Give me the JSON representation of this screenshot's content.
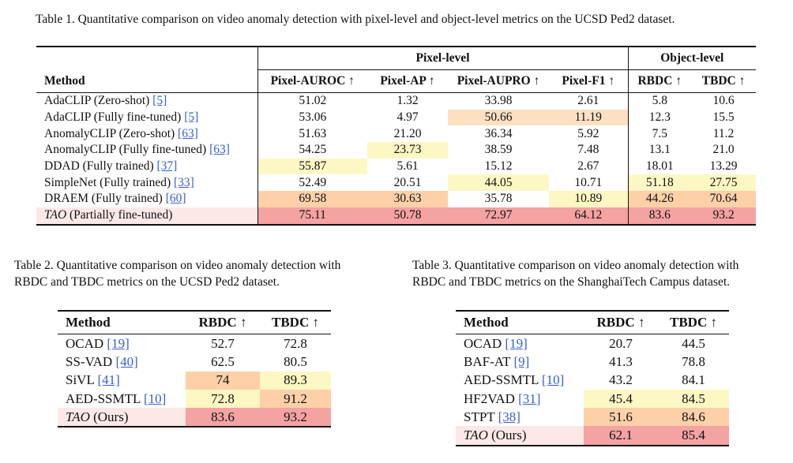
{
  "table1": {
    "caption_label": "Table 1.",
    "caption_text": "Quantitative comparison on video anomaly detection with pixel-level and object-level metrics on the UCSD Ped2 dataset.",
    "group_pixel": "Pixel-level",
    "group_object": "Object-level",
    "headers": [
      "Method",
      "Pixel-AUROC ↑",
      "Pixel-AP ↑",
      "Pixel-AUPRO ↑",
      "Pixel-F1 ↑",
      "RBDC ↑",
      "TBDC ↑"
    ],
    "rows": [
      {
        "method": "AdaCLIP (Zero-shot) ",
        "ref": "[5]",
        "italic": false,
        "cells": [
          "51.02",
          "1.32",
          "33.98",
          "2.61",
          "5.8",
          "10.6"
        ]
      },
      {
        "method": "AdaCLIP (Fully fine-tuned) ",
        "ref": "[5]",
        "italic": false,
        "cells": [
          "53.06",
          "4.97",
          "50.66",
          "11.19",
          "12.3",
          "15.5"
        ]
      },
      {
        "method": "AnomalyCLIP (Zero-shot) ",
        "ref": "[63]",
        "italic": false,
        "cells": [
          "51.63",
          "21.20",
          "36.34",
          "5.92",
          "7.5",
          "11.2"
        ]
      },
      {
        "method": "AnomalyCLIP (Fully fine-tuned) ",
        "ref": "[63]",
        "italic": false,
        "cells": [
          "54.25",
          "23.73",
          "38.59",
          "7.48",
          "13.1",
          "21.0"
        ]
      },
      {
        "method": "DDAD (Fully trained) ",
        "ref": "[37]",
        "italic": false,
        "cells": [
          "55.87",
          "5.61",
          "15.12",
          "2.67",
          "18.01",
          "13.29"
        ]
      },
      {
        "method": "SimpleNet (Fully trained) ",
        "ref": "[33]",
        "italic": false,
        "cells": [
          "52.49",
          "20.51",
          "44.05",
          "10.71",
          "51.18",
          "27.75"
        ]
      },
      {
        "method": "DRAEM (Fully trained) ",
        "ref": "[60]",
        "italic": false,
        "cells": [
          "69.58",
          "30.63",
          "35.78",
          "10.89",
          "44.26",
          "70.64"
        ]
      },
      {
        "method_italic": "TAO",
        "method": " (Partially fine-tuned)",
        "ref": "",
        "italic": true,
        "cells": [
          "75.11",
          "50.78",
          "72.97",
          "64.12",
          "83.6",
          "93.2"
        ]
      }
    ],
    "colors": [
      [
        null,
        null,
        null,
        null,
        null,
        null
      ],
      [
        null,
        null,
        "#fde0c1",
        "#fde0c1",
        null,
        null
      ],
      [
        null,
        null,
        null,
        null,
        null,
        null
      ],
      [
        null,
        "#fdf7c3",
        null,
        null,
        null,
        null
      ],
      [
        "#fdf7c3",
        null,
        null,
        null,
        null,
        null
      ],
      [
        null,
        null,
        "#fdf7c3",
        null,
        "#fdf7c3",
        "#fdf7c3"
      ],
      [
        "#fdd0a8",
        "#fdd0a8",
        null,
        "#fdf7c3",
        "#fdd0a8",
        "#fdd0a8"
      ],
      [
        "#f4a2a2",
        "#f4a2a2",
        "#f4a2a2",
        "#f4a2a2",
        "#f4a2a2",
        "#f4a2a2"
      ]
    ],
    "method_colors": [
      null,
      null,
      null,
      null,
      null,
      null,
      null,
      "#fde8e8"
    ]
  },
  "table2": {
    "caption_label": "Table 2.",
    "caption_line1": "Quantitative comparison on video anomaly detection with",
    "caption_line2": "RBDC and TBDC metrics on the UCSD Ped2 dataset.",
    "headers": [
      "Method",
      "RBDC ↑",
      "TBDC ↑"
    ],
    "rows": [
      {
        "method": "OCAD ",
        "ref": "[19]",
        "italic": false,
        "cells": [
          "52.7",
          "72.8"
        ]
      },
      {
        "method": "SS-VAD ",
        "ref": "[40]",
        "italic": false,
        "cells": [
          "62.5",
          "80.5"
        ]
      },
      {
        "method": "SiVL ",
        "ref": "[41]",
        "italic": false,
        "cells": [
          "74",
          "89.3"
        ]
      },
      {
        "method": "AED-SSMTL ",
        "ref": "[10]",
        "italic": false,
        "cells": [
          "72.8",
          "91.2"
        ]
      },
      {
        "method_italic": "TAO",
        "method": " (Ours)",
        "ref": "",
        "italic": true,
        "cells": [
          "83.6",
          "93.2"
        ]
      }
    ],
    "colors": [
      [
        null,
        null
      ],
      [
        null,
        null
      ],
      [
        "#fdd0a8",
        "#fdf7c3"
      ],
      [
        "#fdf7c3",
        "#fdd0a8"
      ],
      [
        "#f4a2a2",
        "#f4a2a2"
      ]
    ],
    "method_colors": [
      null,
      null,
      null,
      null,
      "#fde8e8"
    ]
  },
  "table3": {
    "caption_label": "Table 3.",
    "caption_line1": "Quantitative comparison on video anomaly detection with",
    "caption_line2": "RBDC and TBDC metrics on the ShanghaiTech Campus dataset.",
    "headers": [
      "Method",
      "RBDC ↑",
      "TBDC ↑"
    ],
    "rows": [
      {
        "method": "OCAD ",
        "ref": "[19]",
        "italic": false,
        "cells": [
          "20.7",
          "44.5"
        ]
      },
      {
        "method": "BAF-AT ",
        "ref": "[9]",
        "italic": false,
        "cells": [
          "41.3",
          "78.8"
        ]
      },
      {
        "method": "AED-SSMTL ",
        "ref": "[10]",
        "italic": false,
        "cells": [
          "43.2",
          "84.1"
        ]
      },
      {
        "method": "HF2VAD ",
        "ref": "[31]",
        "italic": false,
        "cells": [
          "45.4",
          "84.5"
        ]
      },
      {
        "method": "STPT ",
        "ref": "[38]",
        "italic": false,
        "cells": [
          "51.6",
          "84.6"
        ]
      },
      {
        "method_italic": "TAO",
        "method": " (Ours)",
        "ref": "",
        "italic": true,
        "cells": [
          "62.1",
          "85.4"
        ]
      }
    ],
    "colors": [
      [
        null,
        null
      ],
      [
        null,
        null
      ],
      [
        null,
        null
      ],
      [
        "#fdf7c3",
        "#fdf7c3"
      ],
      [
        "#fdd0a8",
        "#fdd0a8"
      ],
      [
        "#f4a2a2",
        "#f4a2a2"
      ]
    ],
    "method_colors": [
      null,
      null,
      null,
      null,
      null,
      "#fde8e8"
    ]
  }
}
